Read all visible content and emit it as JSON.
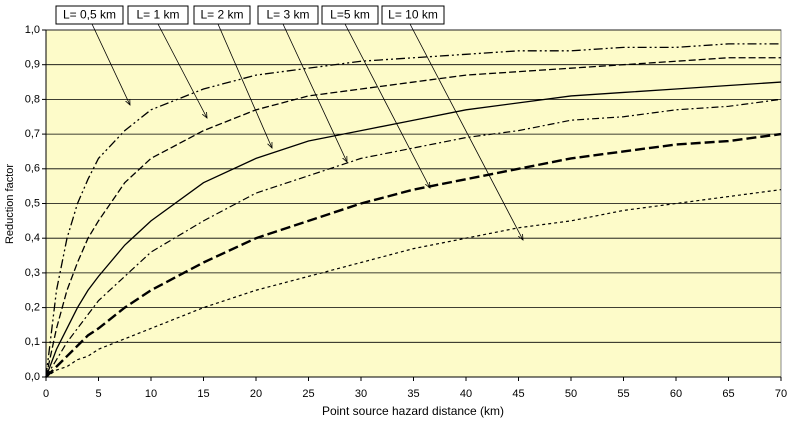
{
  "chart_data": {
    "type": "line",
    "y_label": "Reduction factor",
    "x_label": "Point source hazard distance (km)",
    "x": [
      0,
      1,
      2,
      3,
      4,
      5,
      7.5,
      10,
      15,
      20,
      25,
      30,
      35,
      40,
      45,
      50,
      55,
      60,
      65,
      70
    ],
    "series": [
      {
        "name": "L= 0,5 km",
        "color": "#000000",
        "dash": "9,3,2,3,2,3",
        "width": 1.3,
        "values": [
          0,
          0.25,
          0.4,
          0.5,
          0.57,
          0.63,
          0.71,
          0.77,
          0.83,
          0.87,
          0.89,
          0.91,
          0.92,
          0.93,
          0.94,
          0.94,
          0.95,
          0.95,
          0.96,
          0.96
        ]
      },
      {
        "name": "L= 1 km",
        "color": "#000000",
        "dash": "7,3",
        "width": 1.3,
        "values": [
          0,
          0.14,
          0.25,
          0.33,
          0.4,
          0.45,
          0.56,
          0.63,
          0.71,
          0.77,
          0.81,
          0.83,
          0.85,
          0.87,
          0.88,
          0.89,
          0.9,
          0.91,
          0.92,
          0.92
        ]
      },
      {
        "name": "L= 2 km",
        "color": "#000000",
        "dash": "none",
        "width": 1.3,
        "values": [
          0,
          0.08,
          0.14,
          0.2,
          0.25,
          0.29,
          0.38,
          0.45,
          0.56,
          0.63,
          0.68,
          0.71,
          0.74,
          0.77,
          0.79,
          0.81,
          0.82,
          0.83,
          0.84,
          0.85
        ]
      },
      {
        "name": "L= 3 km",
        "color": "#000000",
        "dash": "7,3,2,3",
        "width": 1.2,
        "values": [
          0,
          0.05,
          0.1,
          0.14,
          0.18,
          0.22,
          0.29,
          0.36,
          0.45,
          0.53,
          0.58,
          0.63,
          0.66,
          0.69,
          0.71,
          0.74,
          0.75,
          0.77,
          0.78,
          0.8
        ]
      },
      {
        "name": "L=5 km",
        "color": "#000000",
        "dash": "10,4",
        "width": 2.4,
        "values": [
          0,
          0.03,
          0.06,
          0.09,
          0.12,
          0.14,
          0.2,
          0.25,
          0.33,
          0.4,
          0.45,
          0.5,
          0.54,
          0.57,
          0.6,
          0.63,
          0.65,
          0.67,
          0.68,
          0.7
        ]
      },
      {
        "name": "L= 10 km",
        "color": "#000000",
        "dash": "3,3",
        "width": 1.2,
        "values": [
          0,
          0.02,
          0.03,
          0.05,
          0.06,
          0.08,
          0.11,
          0.14,
          0.2,
          0.25,
          0.29,
          0.33,
          0.37,
          0.4,
          0.43,
          0.45,
          0.48,
          0.5,
          0.52,
          0.54
        ]
      }
    ],
    "xlim": [
      0,
      70
    ],
    "xticks": [
      0,
      5,
      10,
      15,
      20,
      25,
      30,
      35,
      40,
      45,
      50,
      55,
      60,
      65,
      70
    ],
    "ylim": [
      0,
      1
    ],
    "yticks": [
      {
        "value": 0,
        "label": "0,0"
      },
      {
        "value": 0.1,
        "label": "0,1"
      },
      {
        "value": 0.2,
        "label": "0,2"
      },
      {
        "value": 0.3,
        "label": "0,3"
      },
      {
        "value": 0.4,
        "label": "0,4"
      },
      {
        "value": 0.5,
        "label": "0,5"
      },
      {
        "value": 0.6,
        "label": "0,6"
      },
      {
        "value": 0.7,
        "label": "0,7"
      },
      {
        "value": 0.8,
        "label": "0,8"
      },
      {
        "value": 0.9,
        "label": "0,9"
      },
      {
        "value": 1,
        "label": "1,0"
      }
    ],
    "grid": true,
    "plot_background": "#fdfbc9"
  }
}
